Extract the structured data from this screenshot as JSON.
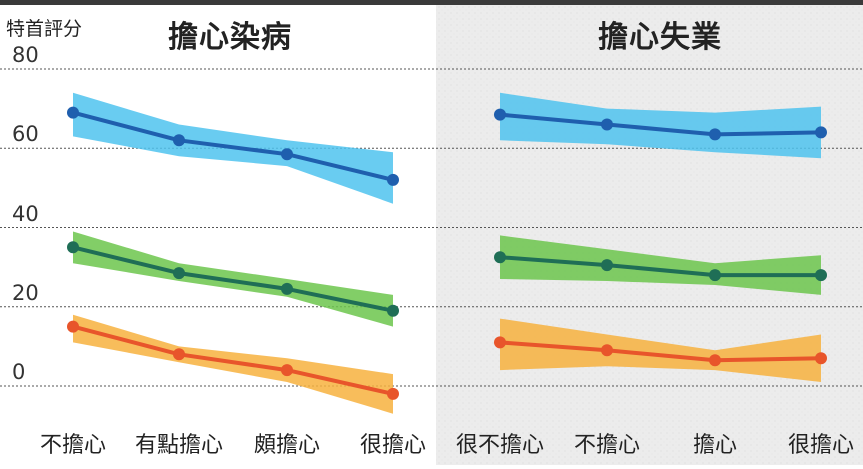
{
  "y_axis_label": "特首評分",
  "chart_data": [
    {
      "type": "line",
      "title": "擔心染病",
      "categories": [
        "不擔心",
        "有點擔心",
        "頗擔心",
        "很擔心"
      ],
      "ylim": [
        -5,
        80
      ],
      "yticks": [
        0,
        20,
        40,
        60,
        80
      ],
      "grid": true,
      "series": [
        {
          "values": [
            69,
            62,
            58.5,
            52
          ],
          "lower": [
            63,
            58,
            55.5,
            46
          ],
          "upper": [
            74,
            66,
            62,
            59
          ],
          "color": "#1f5fae",
          "band_color": "#4fc3ee"
        },
        {
          "values": [
            35,
            28.5,
            24.5,
            19
          ],
          "lower": [
            31,
            26.5,
            22.5,
            15
          ],
          "upper": [
            39,
            31,
            27,
            23
          ],
          "color": "#1f6e56",
          "band_color": "#6cc64c"
        },
        {
          "values": [
            15,
            8,
            4,
            -2
          ],
          "lower": [
            11,
            6,
            1,
            -7
          ],
          "upper": [
            18,
            10,
            7,
            3
          ],
          "color": "#e8552b",
          "band_color": "#f7b23e"
        }
      ]
    },
    {
      "type": "line",
      "title": "擔心失業",
      "categories": [
        "很不擔心",
        "不擔心",
        "擔心",
        "很擔心"
      ],
      "ylim": [
        -5,
        80
      ],
      "yticks": [
        0,
        20,
        40,
        60,
        80
      ],
      "grid": true,
      "series": [
        {
          "values": [
            68.5,
            66,
            63.5,
            64
          ],
          "lower": [
            62,
            61,
            59,
            57.5
          ],
          "upper": [
            74,
            70,
            69,
            70.5
          ],
          "color": "#1f5fae",
          "band_color": "#4fc3ee"
        },
        {
          "values": [
            32.5,
            30.5,
            28,
            28
          ],
          "lower": [
            27,
            26.5,
            25.5,
            23
          ],
          "upper": [
            38,
            34.5,
            31,
            33
          ],
          "color": "#1f6e56",
          "band_color": "#6cc64c"
        },
        {
          "values": [
            11,
            9,
            6.5,
            7
          ],
          "lower": [
            4,
            5,
            4,
            1
          ],
          "upper": [
            17,
            13,
            9,
            13
          ],
          "color": "#e8552b",
          "band_color": "#f7b23e"
        }
      ]
    }
  ]
}
